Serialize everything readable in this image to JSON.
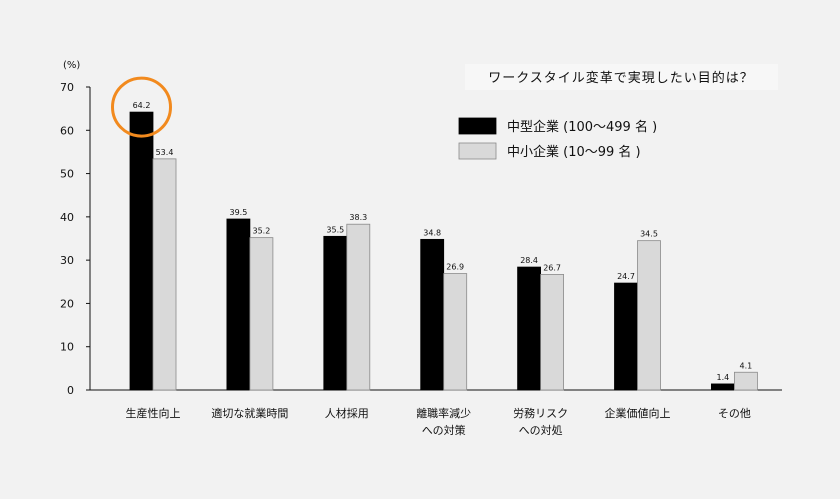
{
  "chart_data": {
    "type": "bar",
    "title": "ワークスタイル変革で実現したい目的は？",
    "ylabel": "(%)",
    "ylim": [
      0,
      70
    ],
    "yticks": [
      0,
      10,
      20,
      30,
      40,
      50,
      60,
      70
    ],
    "grid": false,
    "legend_position": "top-right",
    "categories": [
      [
        "生産性向上"
      ],
      [
        "適切な就業時間"
      ],
      [
        "人材採用"
      ],
      [
        "離職率減少",
        "への対策"
      ],
      [
        "労務リスク",
        "への対処"
      ],
      [
        "企業価値向上"
      ],
      [
        "その他"
      ]
    ],
    "series": [
      {
        "name": "中型企業 (100〜499 名 )",
        "color": "#000000",
        "values": [
          64.2,
          39.5,
          35.5,
          34.8,
          28.4,
          24.7,
          1.4
        ]
      },
      {
        "name": "中小企業 (10〜99 名 )",
        "color": "#d9d9d9",
        "values": [
          53.4,
          35.2,
          38.3,
          26.9,
          26.7,
          34.5,
          4.1
        ]
      }
    ],
    "highlight": {
      "series": 0,
      "category": 0,
      "color": "#f28a1e"
    }
  }
}
